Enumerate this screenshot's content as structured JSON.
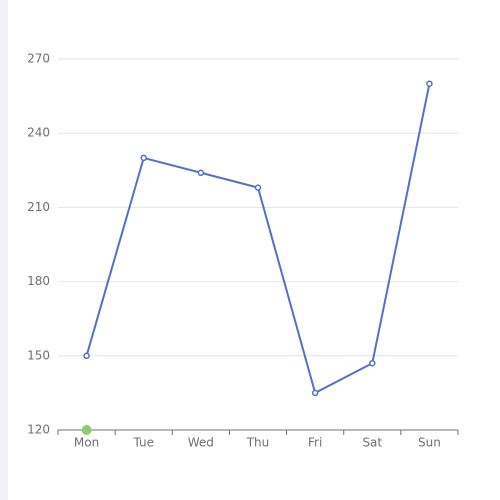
{
  "chart_data": {
    "type": "line",
    "categories": [
      "Mon",
      "Tue",
      "Wed",
      "Thu",
      "Fri",
      "Sat",
      "Sun"
    ],
    "series": [
      {
        "color": "#5470c6",
        "values": [
          150,
          230,
          224,
          218,
          135,
          147,
          260
        ]
      },
      {
        "color": "#91cc75",
        "values": [
          120,
          null,
          null,
          null,
          null,
          null,
          null
        ]
      }
    ],
    "ylim": [
      120,
      270
    ],
    "yticks": [
      120,
      150,
      180,
      210,
      240,
      270
    ],
    "grid": true
  }
}
